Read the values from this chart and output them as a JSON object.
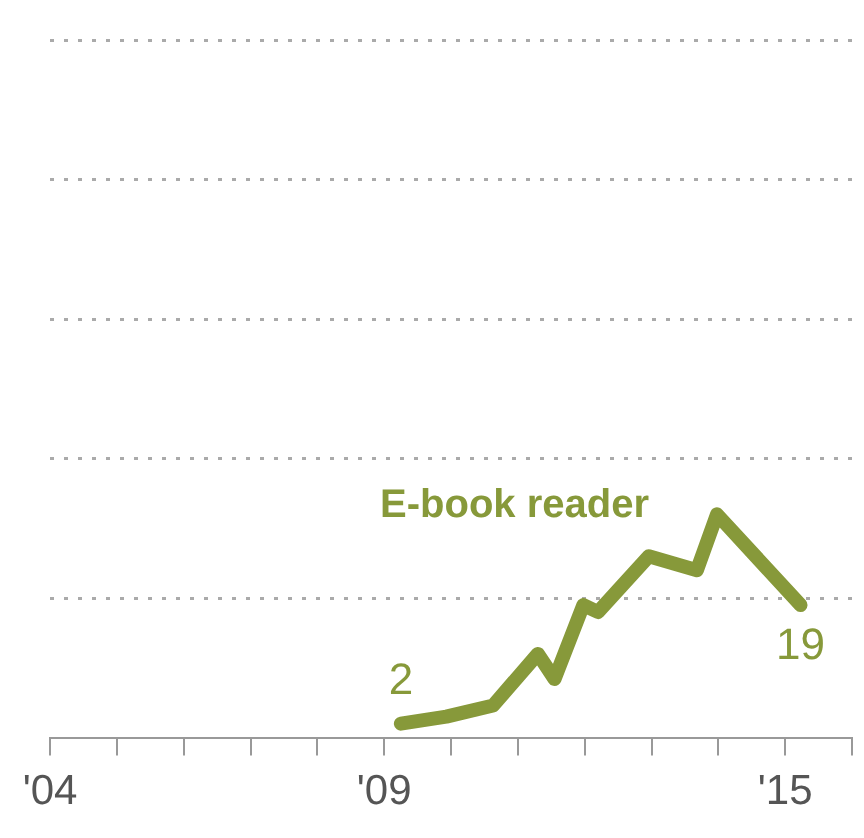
{
  "chart_data": {
    "type": "line",
    "x": [
      2009.25,
      2009.93,
      2010.63,
      2011.3,
      2011.55,
      2011.98,
      2012.2,
      2012.96,
      2013.68,
      2013.98,
      2015.23
    ],
    "series": [
      {
        "name": "E-book reader",
        "color": "#87993a",
        "values": [
          2,
          3,
          4.6,
          12,
          8.4,
          19,
          18,
          26,
          24,
          32,
          19
        ],
        "value_labels": [
          "2",
          null,
          null,
          null,
          null,
          null,
          null,
          null,
          null,
          null,
          "19"
        ]
      }
    ],
    "xlim": [
      2004,
      2016
    ],
    "xticks": [
      {
        "value": 2004,
        "label": "'04"
      },
      {
        "value": 2005,
        "label": null
      },
      {
        "value": 2006,
        "label": null
      },
      {
        "value": 2007,
        "label": null
      },
      {
        "value": 2008,
        "label": null
      },
      {
        "value": 2009,
        "label": "'09"
      },
      {
        "value": 2010,
        "label": null
      },
      {
        "value": 2011,
        "label": null
      },
      {
        "value": 2012,
        "label": null
      },
      {
        "value": 2013,
        "label": null
      },
      {
        "value": 2014,
        "label": null
      },
      {
        "value": 2015,
        "label": "'15"
      },
      {
        "value": 2016,
        "label": null
      }
    ],
    "ylim": [
      0,
      100
    ],
    "yticks": [
      {
        "value": 0,
        "label": null
      },
      {
        "value": 20,
        "label": null
      },
      {
        "value": 40,
        "label": null
      },
      {
        "value": 60,
        "label": null
      },
      {
        "value": 80,
        "label": null
      },
      {
        "value": 100,
        "label": null
      }
    ],
    "grid": "y",
    "legend": false,
    "marker": "none",
    "line_style": "solid",
    "tick_labels": "x"
  }
}
